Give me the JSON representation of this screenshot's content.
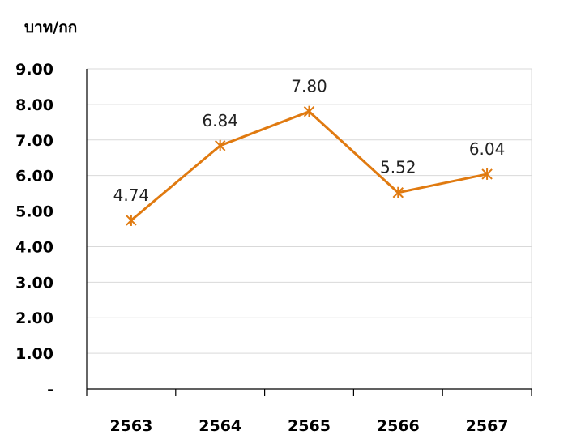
{
  "chart_data": {
    "type": "line",
    "title": "",
    "ylabel": "บาท/กก",
    "xlabel": "",
    "categories": [
      "2563",
      "2564",
      "2565",
      "2566",
      "2567"
    ],
    "series": [
      {
        "values": [
          4.74,
          6.84,
          7.8,
          5.52,
          6.04
        ],
        "labels": [
          "4.74",
          "6.84",
          "7.80",
          "5.52",
          "6.04"
        ],
        "color": "#E07A10"
      }
    ],
    "ylim": [
      0,
      9
    ],
    "yticks": [
      0,
      1,
      2,
      3,
      4,
      5,
      6,
      7,
      8,
      9
    ],
    "ytick_labels": [
      "-",
      "1.00",
      "2.00",
      "3.00",
      "4.00",
      "5.00",
      "6.00",
      "7.00",
      "8.00",
      "9.00"
    ],
    "grid": true,
    "legend": "none",
    "marker": "asterisk"
  }
}
